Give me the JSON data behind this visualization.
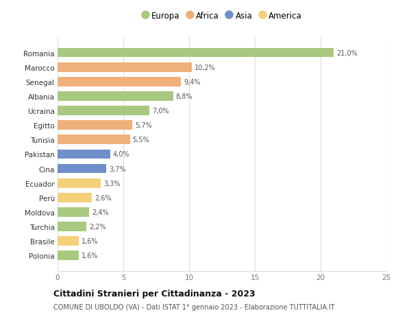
{
  "categories": [
    "Romania",
    "Marocco",
    "Senegal",
    "Albania",
    "Ucraina",
    "Egitto",
    "Tunisia",
    "Pakistan",
    "Cina",
    "Ecuador",
    "Perù",
    "Moldova",
    "Turchia",
    "Brasile",
    "Polonia"
  ],
  "values": [
    21.0,
    10.2,
    9.4,
    8.8,
    7.0,
    5.7,
    5.5,
    4.0,
    3.7,
    3.3,
    2.6,
    2.4,
    2.2,
    1.6,
    1.6
  ],
  "labels": [
    "21,0%",
    "10,2%",
    "9,4%",
    "8,8%",
    "7,0%",
    "5,7%",
    "5,5%",
    "4,0%",
    "3,7%",
    "3,3%",
    "2,6%",
    "2,4%",
    "2,2%",
    "1,6%",
    "1,6%"
  ],
  "continents": [
    "Europa",
    "Africa",
    "Africa",
    "Europa",
    "Europa",
    "Africa",
    "Africa",
    "Asia",
    "Asia",
    "America",
    "America",
    "Europa",
    "Europa",
    "America",
    "Europa"
  ],
  "colors": {
    "Europa": "#a8c97f",
    "Africa": "#f0b07a",
    "Asia": "#6e8fc9",
    "America": "#f5d07a"
  },
  "legend_order": [
    "Europa",
    "Africa",
    "Asia",
    "America"
  ],
  "legend_colors": [
    "#a8c97f",
    "#f0b07a",
    "#6e8fc9",
    "#f5d07a"
  ],
  "xlim": [
    0,
    25
  ],
  "xticks": [
    0,
    5,
    10,
    15,
    20,
    25
  ],
  "title": "Cittadini Stranieri per Cittadinanza - 2023",
  "subtitle": "COMUNE DI UBOLDO (VA) - Dati ISTAT 1° gennaio 2023 - Elaborazione TUTTITALIA.IT",
  "background_color": "#ffffff",
  "grid_color": "#dddddd"
}
